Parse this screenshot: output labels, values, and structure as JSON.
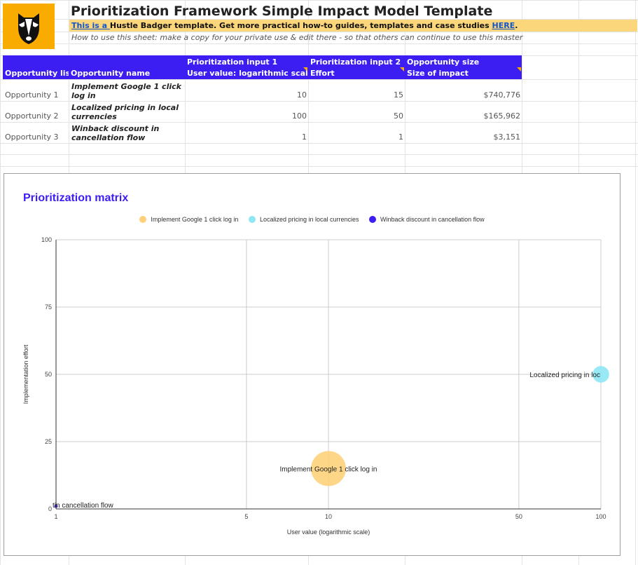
{
  "header": {
    "title": "Prioritization Framework Simple Impact Model Template",
    "promo_link": "This is a ",
    "promo_text": "Hustle Badger template. Get more practical how-to guides, templates and case studies ",
    "promo_here": "HERE",
    "promo_end": ".",
    "howto": "How to use this sheet: make a copy for your private use & edit there - so that others can continue to use this master"
  },
  "table": {
    "headers": {
      "list": "Opportunity list",
      "name": "Opportunity name",
      "input1_top": "Prioritization input 1",
      "input1_bottom": "User value: logarithmic scale",
      "input2_top": "Prioritization input 2",
      "input2_bottom": "Effort",
      "size_top": "Opportunity size",
      "size_bottom": "Size of impact"
    },
    "rows": [
      {
        "list": "Opportunity 1",
        "name": "Implement Google 1 click log in",
        "value": "10",
        "effort": "15",
        "size": "$740,776"
      },
      {
        "list": "Opportunity 2",
        "name": "Localized pricing in local currencies",
        "value": "100",
        "effort": "50",
        "size": "$165,962"
      },
      {
        "list": "Opportunity 3",
        "name": "Winback discount in cancellation flow",
        "value": "1",
        "effort": "1",
        "size": "$3,151"
      }
    ]
  },
  "chart_data": {
    "type": "scatter",
    "title": "Prioritization matrix",
    "xlabel": "User value (logarithmic scale)",
    "ylabel": "Implementation effort",
    "x_scale": "log",
    "xlim": [
      1,
      100
    ],
    "ylim": [
      0,
      100
    ],
    "x_ticks": [
      1,
      5,
      10,
      50,
      100
    ],
    "y_ticks": [
      0,
      25,
      50,
      75,
      100
    ],
    "legend_position": "top",
    "grid": true,
    "series": [
      {
        "name": "Implement Google 1 click log in",
        "x": 10,
        "y": 15,
        "size": 740776,
        "color": "#fdd17a",
        "label": "Implement Google 1 click log in"
      },
      {
        "name": "Localized pricing in local currencies",
        "x": 100,
        "y": 50,
        "size": 165962,
        "color": "#8de7f5",
        "label": "Localized pricing in loc"
      },
      {
        "name": "Winback discount in cancellation flow",
        "x": 1,
        "y": 1,
        "size": 3151,
        "color": "#3c1ef2",
        "label": "tin cancellation flow"
      }
    ]
  }
}
